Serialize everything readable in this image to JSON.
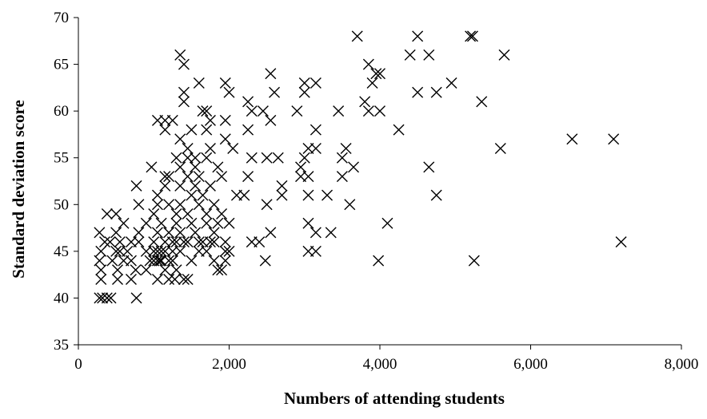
{
  "chart_data": {
    "type": "scatter",
    "title": "",
    "xlabel": "Numbers of attending students",
    "ylabel": "Standard deviation score",
    "xlim": [
      0,
      8000
    ],
    "ylim": [
      35,
      70
    ],
    "xticks": [
      0,
      2000,
      4000,
      6000,
      8000
    ],
    "xtick_labels": [
      "0",
      "2,000",
      "4,000",
      "6,000",
      "8,000"
    ],
    "yticks": [
      35,
      40,
      45,
      50,
      55,
      60,
      65,
      70
    ],
    "ytick_labels": [
      "35",
      "40",
      "45",
      "50",
      "55",
      "60",
      "65",
      "70"
    ],
    "grid": false,
    "legend": "none",
    "marker": "x",
    "color": "#000000",
    "series": [
      {
        "points": [
          [
            280,
            40
          ],
          [
            320,
            40
          ],
          [
            380,
            40
          ],
          [
            430,
            40
          ],
          [
            770,
            40
          ],
          [
            300,
            42
          ],
          [
            520,
            42
          ],
          [
            700,
            42
          ],
          [
            1050,
            42
          ],
          [
            1200,
            42
          ],
          [
            1280,
            42
          ],
          [
            1400,
            42
          ],
          [
            1450,
            42
          ],
          [
            300,
            43
          ],
          [
            520,
            43
          ],
          [
            760,
            43
          ],
          [
            900,
            43
          ],
          [
            1150,
            43
          ],
          [
            1300,
            43
          ],
          [
            1850,
            43
          ],
          [
            1900,
            43
          ],
          [
            280,
            44
          ],
          [
            450,
            44
          ],
          [
            600,
            44
          ],
          [
            700,
            44
          ],
          [
            950,
            44
          ],
          [
            1000,
            44
          ],
          [
            1050,
            44
          ],
          [
            1080,
            44
          ],
          [
            1100,
            44
          ],
          [
            1200,
            44
          ],
          [
            1250,
            44
          ],
          [
            1500,
            44
          ],
          [
            1800,
            44
          ],
          [
            1950,
            44
          ],
          [
            2480,
            44
          ],
          [
            3980,
            44
          ],
          [
            5250,
            44
          ],
          [
            300,
            45
          ],
          [
            500,
            45
          ],
          [
            550,
            45
          ],
          [
            650,
            45
          ],
          [
            900,
            45
          ],
          [
            1000,
            45
          ],
          [
            1050,
            45
          ],
          [
            1100,
            45
          ],
          [
            1150,
            45
          ],
          [
            1250,
            45
          ],
          [
            1350,
            45
          ],
          [
            1600,
            45
          ],
          [
            1700,
            45
          ],
          [
            1950,
            45
          ],
          [
            2000,
            45
          ],
          [
            3050,
            45
          ],
          [
            3150,
            45
          ],
          [
            350,
            46
          ],
          [
            420,
            46
          ],
          [
            550,
            46
          ],
          [
            700,
            46
          ],
          [
            800,
            46
          ],
          [
            1000,
            46
          ],
          [
            1150,
            46
          ],
          [
            1250,
            46
          ],
          [
            1300,
            46
          ],
          [
            1400,
            46
          ],
          [
            1450,
            46
          ],
          [
            1600,
            46
          ],
          [
            1650,
            46
          ],
          [
            1750,
            46
          ],
          [
            1800,
            46
          ],
          [
            1950,
            46
          ],
          [
            2300,
            46
          ],
          [
            2400,
            46
          ],
          [
            7200,
            46
          ],
          [
            280,
            47
          ],
          [
            500,
            47
          ],
          [
            800,
            47
          ],
          [
            1050,
            47
          ],
          [
            1200,
            47
          ],
          [
            1350,
            47
          ],
          [
            1550,
            47
          ],
          [
            1800,
            47
          ],
          [
            2550,
            47
          ],
          [
            3150,
            47
          ],
          [
            3350,
            47
          ],
          [
            600,
            48
          ],
          [
            900,
            48
          ],
          [
            1100,
            48
          ],
          [
            1300,
            48
          ],
          [
            1500,
            48
          ],
          [
            1700,
            48
          ],
          [
            1850,
            48
          ],
          [
            2000,
            48
          ],
          [
            3050,
            48
          ],
          [
            4100,
            48
          ],
          [
            380,
            49
          ],
          [
            500,
            49
          ],
          [
            1000,
            49
          ],
          [
            1300,
            49
          ],
          [
            1450,
            49
          ],
          [
            1700,
            49
          ],
          [
            1900,
            49
          ],
          [
            800,
            50
          ],
          [
            1050,
            50
          ],
          [
            1200,
            50
          ],
          [
            1350,
            50
          ],
          [
            1600,
            50
          ],
          [
            1800,
            50
          ],
          [
            2500,
            50
          ],
          [
            3600,
            50
          ],
          [
            1050,
            51
          ],
          [
            1500,
            51
          ],
          [
            1650,
            51
          ],
          [
            2100,
            51
          ],
          [
            2200,
            51
          ],
          [
            2700,
            51
          ],
          [
            3050,
            51
          ],
          [
            3300,
            51
          ],
          [
            4750,
            51
          ],
          [
            770,
            52
          ],
          [
            1150,
            52
          ],
          [
            1350,
            52
          ],
          [
            1550,
            52
          ],
          [
            1750,
            52
          ],
          [
            2700,
            52
          ],
          [
            1150,
            53
          ],
          [
            1200,
            53
          ],
          [
            1450,
            53
          ],
          [
            1600,
            53
          ],
          [
            1900,
            53
          ],
          [
            2250,
            53
          ],
          [
            2950,
            53
          ],
          [
            3050,
            53
          ],
          [
            3500,
            53
          ],
          [
            970,
            54
          ],
          [
            1350,
            54
          ],
          [
            1550,
            54
          ],
          [
            1850,
            54
          ],
          [
            2950,
            54
          ],
          [
            3650,
            54
          ],
          [
            4650,
            54
          ],
          [
            1300,
            55
          ],
          [
            1450,
            55
          ],
          [
            1550,
            55
          ],
          [
            1700,
            55
          ],
          [
            2300,
            55
          ],
          [
            2500,
            55
          ],
          [
            2650,
            55
          ],
          [
            3000,
            55
          ],
          [
            3500,
            55
          ],
          [
            1450,
            56
          ],
          [
            1750,
            56
          ],
          [
            2050,
            56
          ],
          [
            3050,
            56
          ],
          [
            3150,
            56
          ],
          [
            3550,
            56
          ],
          [
            5600,
            56
          ],
          [
            1350,
            57
          ],
          [
            1950,
            57
          ],
          [
            6550,
            57
          ],
          [
            7100,
            57
          ],
          [
            1150,
            58
          ],
          [
            1500,
            58
          ],
          [
            1700,
            58
          ],
          [
            2250,
            58
          ],
          [
            3150,
            58
          ],
          [
            4250,
            58
          ],
          [
            1050,
            59
          ],
          [
            1150,
            59
          ],
          [
            1250,
            59
          ],
          [
            1750,
            59
          ],
          [
            1950,
            59
          ],
          [
            2550,
            59
          ],
          [
            1650,
            60
          ],
          [
            1700,
            60
          ],
          [
            2300,
            60
          ],
          [
            2450,
            60
          ],
          [
            2900,
            60
          ],
          [
            3450,
            60
          ],
          [
            3850,
            60
          ],
          [
            4000,
            60
          ],
          [
            1400,
            61
          ],
          [
            2250,
            61
          ],
          [
            3800,
            61
          ],
          [
            5350,
            61
          ],
          [
            1400,
            62
          ],
          [
            2000,
            62
          ],
          [
            2600,
            62
          ],
          [
            3000,
            62
          ],
          [
            4500,
            62
          ],
          [
            4750,
            62
          ],
          [
            1600,
            63
          ],
          [
            1950,
            63
          ],
          [
            3000,
            63
          ],
          [
            3150,
            63
          ],
          [
            3900,
            63
          ],
          [
            4950,
            63
          ],
          [
            2550,
            64
          ],
          [
            3950,
            64
          ],
          [
            4000,
            64
          ],
          [
            1400,
            65
          ],
          [
            3850,
            65
          ],
          [
            1350,
            66
          ],
          [
            4400,
            66
          ],
          [
            4650,
            66
          ],
          [
            5650,
            66
          ],
          [
            3700,
            68
          ],
          [
            4500,
            68
          ],
          [
            5200,
            68
          ],
          [
            5230,
            68
          ]
        ]
      }
    ]
  }
}
